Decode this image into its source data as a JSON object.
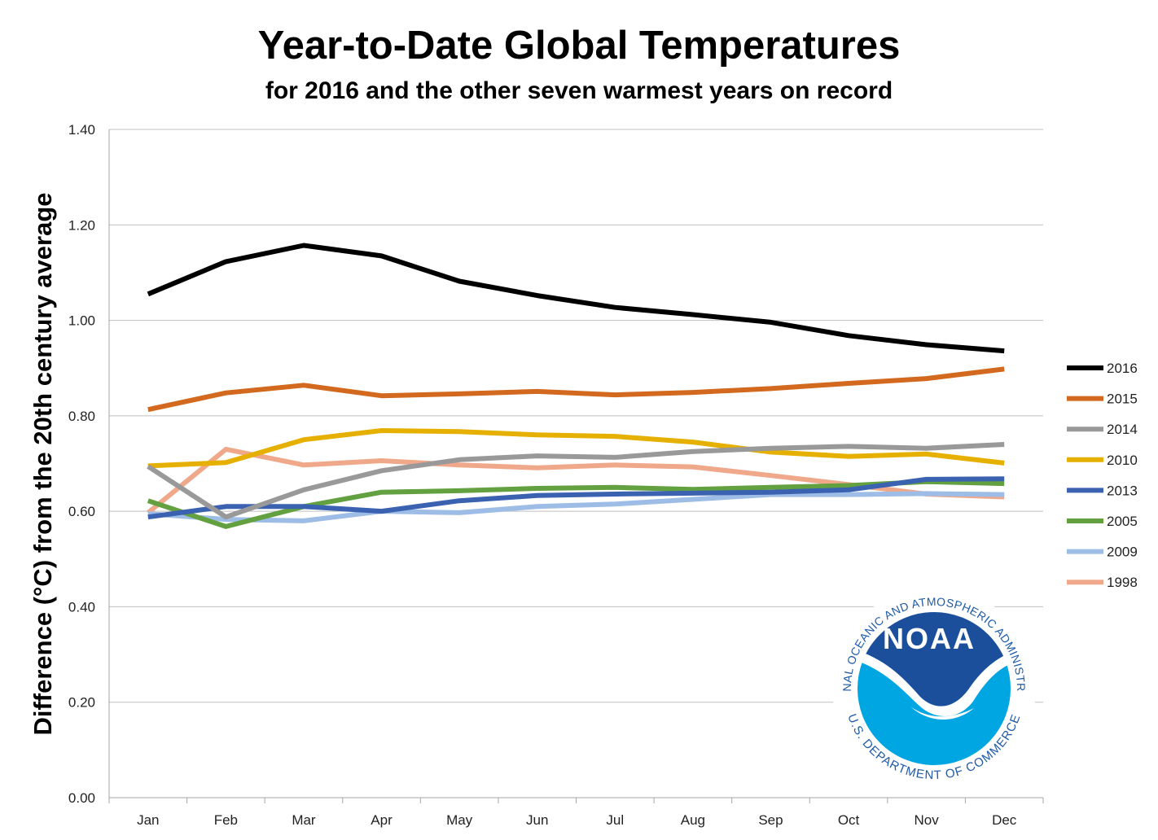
{
  "chart_data": {
    "type": "line",
    "title": "Year-to-Date Global Temperatures",
    "subtitle": "for 2016 and the other seven warmest years on record",
    "xlabel": "",
    "ylabel": "Difference (°C) from the 20th century average",
    "categories": [
      "Jan",
      "Feb",
      "Mar",
      "Apr",
      "May",
      "Jun",
      "Jul",
      "Aug",
      "Sep",
      "Oct",
      "Nov",
      "Dec"
    ],
    "ylim": [
      0,
      1.4
    ],
    "yticks": [
      0.0,
      0.2,
      0.4,
      0.6,
      0.8,
      1.0,
      1.2,
      1.4
    ],
    "ytick_labels": [
      "0.00",
      "0.20",
      "0.40",
      "0.60",
      "0.80",
      "1.00",
      "1.20",
      "1.40"
    ],
    "grid": "horizontal",
    "legend_position": "right",
    "series": [
      {
        "name": "2016",
        "color": "#000000",
        "values": [
          1.055,
          1.123,
          1.157,
          1.135,
          1.082,
          1.052,
          1.027,
          1.012,
          0.996,
          0.968,
          0.949,
          0.936
        ]
      },
      {
        "name": "2015",
        "color": "#D2691E",
        "values": [
          0.813,
          0.848,
          0.864,
          0.842,
          0.846,
          0.851,
          0.844,
          0.849,
          0.857,
          0.868,
          0.878,
          0.898
        ]
      },
      {
        "name": "2014",
        "color": "#999999",
        "values": [
          0.694,
          0.588,
          0.645,
          0.685,
          0.708,
          0.716,
          0.713,
          0.725,
          0.732,
          0.736,
          0.732,
          0.74
        ]
      },
      {
        "name": "2010",
        "color": "#E6B000",
        "values": [
          0.695,
          0.702,
          0.75,
          0.769,
          0.767,
          0.76,
          0.757,
          0.745,
          0.724,
          0.715,
          0.72,
          0.701
        ]
      },
      {
        "name": "2013",
        "color": "#3A62B0",
        "values": [
          0.588,
          0.61,
          0.61,
          0.6,
          0.622,
          0.633,
          0.636,
          0.638,
          0.64,
          0.645,
          0.667,
          0.668
        ]
      },
      {
        "name": "2005",
        "color": "#63A040",
        "values": [
          0.622,
          0.568,
          0.61,
          0.64,
          0.643,
          0.648,
          0.65,
          0.646,
          0.65,
          0.654,
          0.662,
          0.658
        ]
      },
      {
        "name": "2009",
        "color": "#9EBDE6",
        "values": [
          0.595,
          0.583,
          0.58,
          0.6,
          0.597,
          0.61,
          0.615,
          0.625,
          0.635,
          0.635,
          0.637,
          0.635
        ]
      },
      {
        "name": "1998",
        "color": "#F0A88A",
        "values": [
          0.597,
          0.73,
          0.697,
          0.706,
          0.697,
          0.691,
          0.697,
          0.693,
          0.675,
          0.656,
          0.636,
          0.63
        ]
      }
    ]
  },
  "logo": {
    "name": "NOAA",
    "ring_text_top": "NATIONAL OCEANIC AND ATMOSPHERIC ADMINISTRATION",
    "ring_text_bottom": "U.S. DEPARTMENT OF COMMERCE",
    "colors": {
      "navy": "#1B4F9C",
      "cyan": "#00A6E2",
      "ring_text": "#1E5AA8"
    }
  }
}
